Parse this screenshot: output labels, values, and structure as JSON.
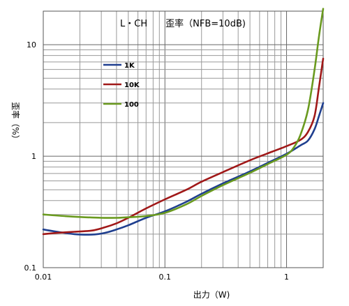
{
  "chart_data": {
    "type": "line",
    "title": "L・CH　　歪率（NFB=10dB)",
    "xlabel": "出力（W)",
    "ylabel": "歪率（%）",
    "xscale": "log",
    "yscale": "log",
    "xlim": [
      0.01,
      2
    ],
    "ylim": [
      0.1,
      20
    ],
    "xticks": [
      {
        "value": 0.01,
        "label": "0.01"
      },
      {
        "value": 0.1,
        "label": "0.1"
      },
      {
        "value": 1,
        "label": "1"
      }
    ],
    "yticks": [
      {
        "value": 0.1,
        "label": "0.1"
      },
      {
        "value": 1,
        "label": "1"
      },
      {
        "value": 10,
        "label": "10"
      }
    ],
    "grid": true,
    "legend_position": "upper-left",
    "series": [
      {
        "name": "1K",
        "color": "#1f3f8f",
        "x": [
          0.01,
          0.013,
          0.018,
          0.025,
          0.032,
          0.04,
          0.05,
          0.07,
          0.1,
          0.15,
          0.2,
          0.3,
          0.5,
          0.7,
          1.0,
          1.3,
          1.5,
          1.7,
          1.85,
          2.0
        ],
        "y": [
          0.22,
          0.21,
          0.2,
          0.198,
          0.205,
          0.22,
          0.24,
          0.28,
          0.32,
          0.39,
          0.46,
          0.57,
          0.73,
          0.87,
          1.05,
          1.25,
          1.38,
          1.75,
          2.3,
          3.0
        ]
      },
      {
        "name": "10K",
        "color": "#a01818",
        "x": [
          0.01,
          0.013,
          0.018,
          0.025,
          0.032,
          0.04,
          0.05,
          0.07,
          0.1,
          0.15,
          0.2,
          0.3,
          0.5,
          0.7,
          1.0,
          1.3,
          1.5,
          1.7,
          1.85,
          2.0
        ],
        "y": [
          0.2,
          0.205,
          0.21,
          0.215,
          0.23,
          0.25,
          0.28,
          0.34,
          0.41,
          0.5,
          0.59,
          0.72,
          0.92,
          1.06,
          1.23,
          1.4,
          1.65,
          2.3,
          4.2,
          7.5
        ]
      },
      {
        "name": "100",
        "color": "#6a9a1f",
        "x": [
          0.01,
          0.015,
          0.02,
          0.03,
          0.04,
          0.05,
          0.07,
          0.1,
          0.15,
          0.2,
          0.3,
          0.5,
          0.7,
          1.0,
          1.15,
          1.3,
          1.5,
          1.7,
          1.85,
          2.0
        ],
        "y": [
          0.3,
          0.29,
          0.285,
          0.28,
          0.28,
          0.283,
          0.29,
          0.31,
          0.37,
          0.44,
          0.55,
          0.71,
          0.85,
          1.03,
          1.2,
          1.55,
          2.6,
          6.0,
          12.0,
          21.0
        ]
      }
    ]
  }
}
